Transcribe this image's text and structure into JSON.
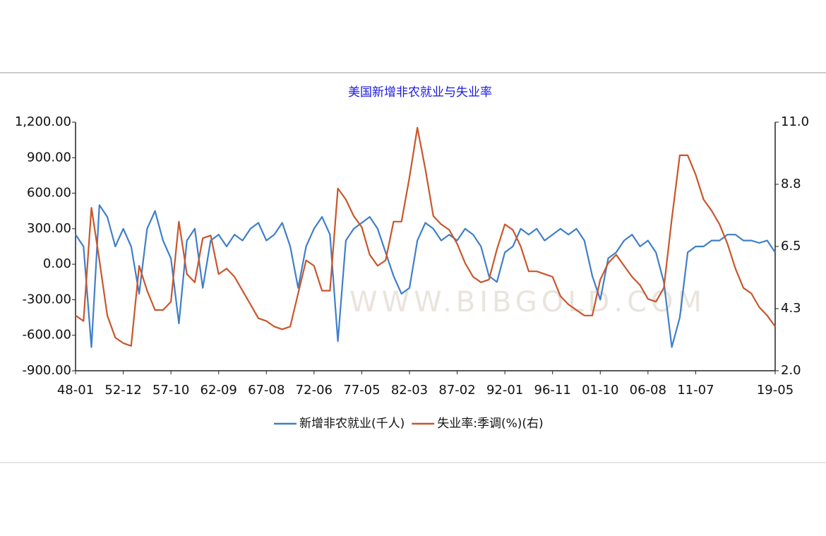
{
  "chart_data": {
    "type": "line",
    "title": "美国新增非农就业与失业率",
    "watermark": "WWW.BIBGOLD.COM",
    "categories": [
      "48-01",
      null,
      null,
      null,
      null,
      null,
      "52-12",
      null,
      null,
      null,
      null,
      null,
      "57-10",
      null,
      null,
      null,
      null,
      null,
      "62-09",
      null,
      null,
      null,
      null,
      null,
      "67-08",
      null,
      null,
      null,
      null,
      null,
      "72-06",
      null,
      null,
      null,
      null,
      null,
      "77-05",
      null,
      null,
      null,
      null,
      null,
      "82-03",
      null,
      null,
      null,
      null,
      null,
      "87-02",
      null,
      null,
      null,
      null,
      null,
      "92-01",
      null,
      null,
      null,
      null,
      null,
      "96-11",
      null,
      null,
      null,
      null,
      null,
      "01-10",
      null,
      null,
      null,
      null,
      null,
      "06-08",
      null,
      null,
      null,
      null,
      null,
      "11-07",
      null,
      null,
      null,
      null,
      null,
      null,
      null,
      null,
      null,
      "19-05"
    ],
    "series": [
      {
        "name": "新增非农就业(千人)",
        "color": "#3f7fc8",
        "axis": "y",
        "values": [
          250,
          150,
          -700,
          500,
          400,
          150,
          300,
          150,
          -250,
          300,
          450,
          200,
          50,
          -500,
          200,
          300,
          -200,
          200,
          250,
          150,
          250,
          200,
          300,
          350,
          200,
          250,
          350,
          150,
          -200,
          150,
          300,
          400,
          250,
          -650,
          200,
          300,
          350,
          400,
          300,
          100,
          -100,
          -250,
          -200,
          200,
          350,
          300,
          200,
          250,
          200,
          300,
          250,
          150,
          -100,
          -150,
          100,
          150,
          300,
          250,
          300,
          200,
          250,
          300,
          250,
          300,
          200,
          -100,
          -300,
          50,
          100,
          200,
          250,
          150,
          200,
          100,
          -150,
          -700,
          -450,
          100,
          150,
          150,
          200,
          200,
          250,
          250,
          200,
          200,
          180,
          200,
          100
        ]
      },
      {
        "name": "失业率:季调(%)(右)",
        "color": "#c9562b",
        "axis": "y2",
        "values": [
          4.0,
          3.8,
          7.9,
          6.0,
          4.0,
          3.2,
          3.0,
          2.9,
          5.8,
          4.9,
          4.2,
          4.2,
          4.5,
          7.4,
          5.5,
          5.2,
          6.8,
          6.9,
          5.5,
          5.7,
          5.4,
          4.9,
          4.4,
          3.9,
          3.8,
          3.6,
          3.5,
          3.6,
          4.8,
          6.0,
          5.8,
          4.9,
          4.9,
          8.6,
          8.2,
          7.6,
          7.2,
          6.2,
          5.8,
          6.0,
          7.4,
          7.4,
          9.0,
          10.8,
          9.3,
          7.6,
          7.3,
          7.1,
          6.6,
          5.9,
          5.4,
          5.2,
          5.3,
          6.4,
          7.3,
          7.1,
          6.5,
          5.6,
          5.6,
          5.5,
          5.4,
          4.7,
          4.4,
          4.2,
          4.0,
          4.0,
          5.3,
          5.9,
          6.2,
          5.8,
          5.4,
          5.1,
          4.6,
          4.5,
          5.0,
          7.5,
          9.8,
          9.8,
          9.1,
          8.2,
          7.8,
          7.3,
          6.6,
          5.7,
          5.0,
          4.8,
          4.3,
          4.0,
          3.6
        ]
      }
    ],
    "ylim": [
      -900,
      1200
    ],
    "yticks": [
      {
        "value": -900,
        "label": "-900.00"
      },
      {
        "value": -600,
        "label": "-600.00"
      },
      {
        "value": -300,
        "label": "-300.00"
      },
      {
        "value": 0,
        "label": "0.00"
      },
      {
        "value": 300,
        "label": "300.00"
      },
      {
        "value": 600,
        "label": "600.00"
      },
      {
        "value": 900,
        "label": "900.00"
      },
      {
        "value": 1200,
        "label": "1,200.00"
      }
    ],
    "y2lim": [
      2.0,
      11.0
    ],
    "y2ticks": [
      {
        "value": 2.0,
        "label": "2.0"
      },
      {
        "value": 4.25,
        "label": "4.3"
      },
      {
        "value": 6.5,
        "label": "6.5"
      },
      {
        "value": 8.75,
        "label": "8.8"
      },
      {
        "value": 11.0,
        "label": "11.0"
      }
    ],
    "legend": "bottom"
  }
}
